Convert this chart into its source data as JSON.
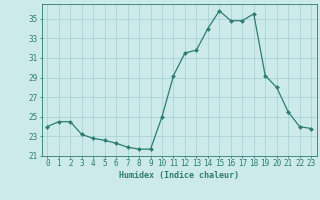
{
  "x": [
    0,
    1,
    2,
    3,
    4,
    5,
    6,
    7,
    8,
    9,
    10,
    11,
    12,
    13,
    14,
    15,
    16,
    17,
    18,
    19,
    20,
    21,
    22,
    23
  ],
  "y": [
    24.0,
    24.5,
    24.5,
    23.2,
    22.8,
    22.6,
    22.3,
    21.9,
    21.7,
    21.7,
    25.0,
    29.2,
    31.5,
    31.8,
    34.0,
    35.8,
    34.8,
    34.8,
    35.5,
    29.2,
    28.0,
    25.5,
    24.0,
    23.8
  ],
  "line_color": "#2e7d6e",
  "marker": "D",
  "marker_size": 2.0,
  "bg_color": "#cceaea",
  "grid_color": "#aad4d4",
  "xlabel": "Humidex (Indice chaleur)",
  "xlim": [
    -0.5,
    23.5
  ],
  "ylim": [
    21,
    36.5
  ],
  "yticks": [
    21,
    23,
    25,
    27,
    29,
    31,
    33,
    35
  ],
  "xticks": [
    0,
    1,
    2,
    3,
    4,
    5,
    6,
    7,
    8,
    9,
    10,
    11,
    12,
    13,
    14,
    15,
    16,
    17,
    18,
    19,
    20,
    21,
    22,
    23
  ],
  "tick_color": "#2e7d6e",
  "font_color": "#2e7d6e",
  "font_size": 5.5,
  "xlabel_font_size": 6.0,
  "linewidth": 0.9
}
